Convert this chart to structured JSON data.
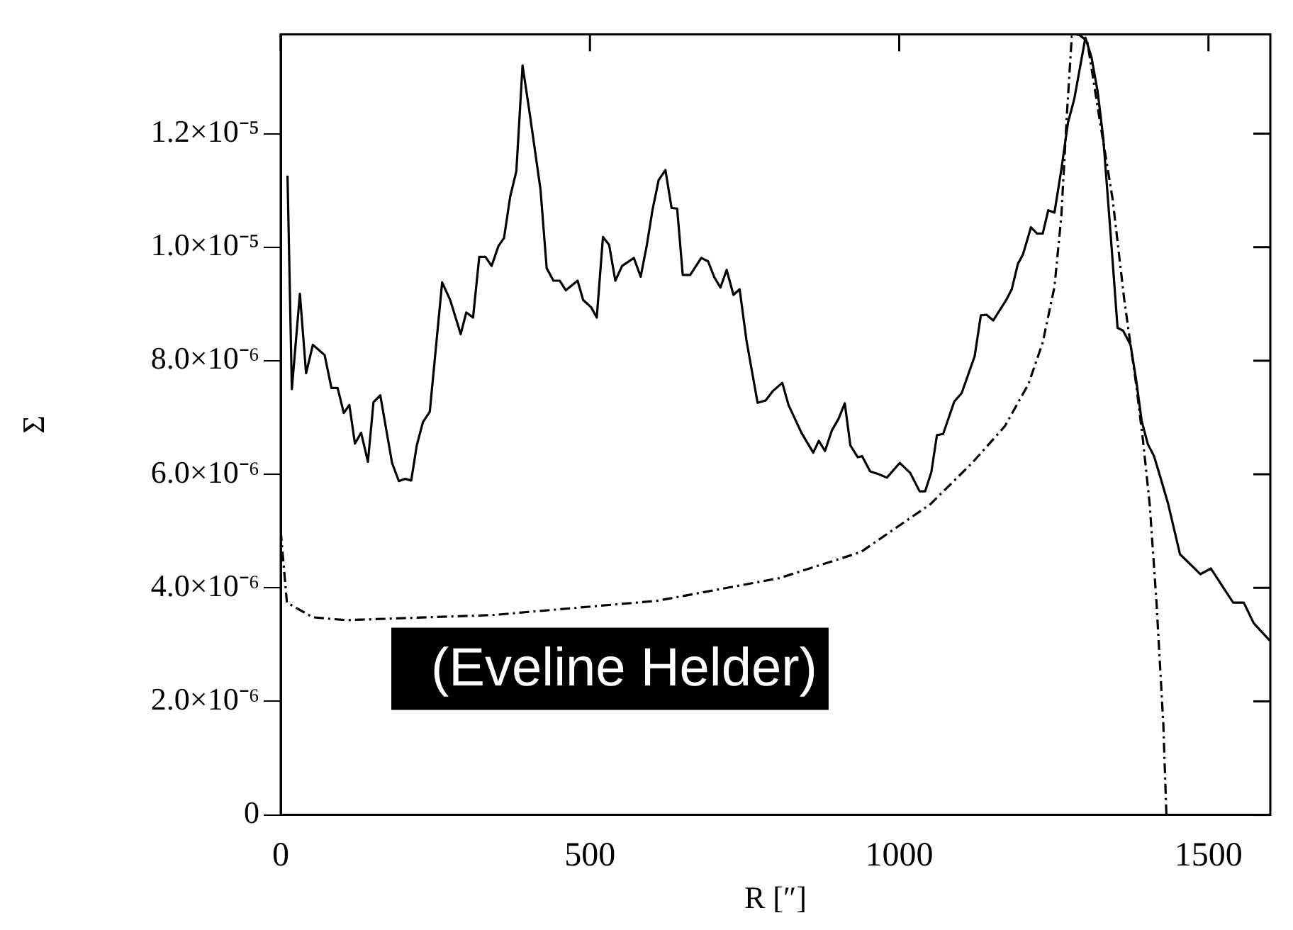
{
  "chart_data": {
    "type": "line",
    "xlabel": "R [″]",
    "ylabel": "Σ",
    "xlim": [
      0,
      1600
    ],
    "xticks": [
      0,
      500,
      1000,
      1500
    ],
    "ylim": [
      0,
      1.375e-05
    ],
    "yticks": [
      0,
      {
        "value": 2e-06,
        "label": "2.0×10⁻⁶"
      },
      {
        "value": 4e-06,
        "label": "4.0×10⁻⁶"
      },
      {
        "value": 6e-06,
        "label": "6.0×10⁻⁶"
      },
      {
        "value": 8e-06,
        "label": "8.0×10⁻⁶"
      },
      {
        "value": 1e-05,
        "label": "1.0×10⁻⁵"
      },
      {
        "value": 1.2e-05,
        "label": "1.2×10⁻⁵"
      }
    ],
    "grid": false,
    "legend": false,
    "marker": "none",
    "annotations": [
      "(Eveline Helder)"
    ],
    "series": [
      {
        "color": "#000000",
        "line_style": "solid",
        "x": [
          11,
          18,
          31,
          41,
          52,
          71,
          82,
          92,
          102,
          111,
          120,
          130,
          141,
          150,
          161,
          180,
          191,
          201,
          211,
          220,
          230,
          241,
          261,
          274,
          291,
          300,
          311,
          321,
          331,
          341,
          352,
          361,
          371,
          381,
          391,
          402,
          420,
          430,
          441,
          451,
          461,
          480,
          489,
          502,
          511,
          521,
          531,
          541,
          552,
          571,
          582,
          592,
          601,
          611,
          622,
          632,
          641,
          650,
          662,
          680,
          691,
          701,
          711,
          721,
          732,
          742,
          753,
          771,
          784,
          796,
          811,
          821,
          842,
          861,
          870,
          880,
          891,
          902,
          912,
          921,
          933,
          940,
          953,
          967,
          980,
          1001,
          1018,
          1033,
          1042,
          1052,
          1061,
          1071,
          1089,
          1101,
          1122,
          1132,
          1141,
          1152,
          1173,
          1182,
          1192,
          1200,
          1213,
          1223,
          1232,
          1241,
          1251,
          1262,
          1273,
          1283,
          1301,
          1311,
          1321,
          1330,
          1342,
          1353,
          1362,
          1374,
          1383,
          1392,
          1402,
          1412,
          1423,
          1435,
          1454,
          1474,
          1487,
          1504,
          1523,
          1540,
          1557,
          1573,
          1599
        ],
        "values": [
          1.126e-05,
          7.5e-06,
          9.18e-06,
          7.78e-06,
          8.28e-06,
          8.1e-06,
          7.52e-06,
          7.52e-06,
          7.08e-06,
          7.22e-06,
          6.54e-06,
          6.73e-06,
          6.22e-06,
          7.27e-06,
          7.39e-06,
          6.2e-06,
          5.88e-06,
          5.92e-06,
          5.89e-06,
          6.51e-06,
          6.92e-06,
          7.1e-06,
          9.38e-06,
          9.07e-06,
          8.47e-06,
          8.85e-06,
          8.76e-06,
          9.83e-06,
          9.83e-06,
          9.67e-06,
          1.002e-05,
          1.016e-05,
          1.089e-05,
          1.134e-05,
          1.32e-05,
          1.24e-05,
          1.102e-05,
          9.63e-06,
          9.41e-06,
          9.41e-06,
          9.24e-06,
          9.41e-06,
          9.07e-06,
          8.94e-06,
          8.76e-06,
          1.018e-05,
          1.004e-05,
          9.41e-06,
          9.67e-06,
          9.81e-06,
          9.48e-06,
          1.004e-05,
          1.065e-05,
          1.118e-05,
          1.136e-05,
          1.069e-05,
          1.068e-05,
          9.51e-06,
          9.51e-06,
          9.81e-06,
          9.75e-06,
          9.47e-06,
          9.29e-06,
          9.6e-06,
          9.16e-06,
          9.26e-06,
          8.36e-06,
          7.26e-06,
          7.3e-06,
          7.47e-06,
          7.61e-06,
          7.22e-06,
          6.73e-06,
          6.38e-06,
          6.59e-06,
          6.41e-06,
          6.77e-06,
          6.98e-06,
          7.25e-06,
          6.51e-06,
          6.3e-06,
          6.32e-06,
          6.05e-06,
          6e-06,
          5.94e-06,
          6.2e-06,
          6.02e-06,
          5.7e-06,
          5.7e-06,
          6.04e-06,
          6.69e-06,
          6.71e-06,
          7.28e-06,
          7.43e-06,
          8.08e-06,
          8.8e-06,
          8.81e-06,
          8.71e-06,
          9.07e-06,
          9.26e-06,
          9.71e-06,
          9.87e-06,
          1.035e-05,
          1.024e-05,
          1.024e-05,
          1.065e-05,
          1.061e-05,
          1.136e-05,
          1.22e-05,
          1.261e-05,
          1.369e-05,
          1.334e-05,
          1.273e-05,
          1.191e-05,
          1.02e-05,
          8.58e-06,
          8.53e-06,
          8.28e-06,
          7.67e-06,
          6.94e-06,
          6.53e-06,
          6.32e-06,
          5.92e-06,
          5.47e-06,
          4.59e-06,
          4.38e-06,
          4.24e-06,
          4.34e-06,
          4.02e-06,
          3.74e-06,
          3.74e-06,
          3.38e-06,
          3.07e-06
        ]
      },
      {
        "color": "#000000",
        "line_style": "dashed",
        "x": [
          0,
          10,
          52,
          106,
          343,
          608,
          806,
          938,
          1050,
          1118,
          1171,
          1209,
          1232,
          1251,
          1262,
          1271,
          1279,
          1290,
          1304,
          1323,
          1345,
          1364,
          1383,
          1394,
          1405,
          1416,
          1427,
          1432
        ],
        "values": [
          5e-06,
          3.74e-06,
          3.48e-06,
          3.43e-06,
          3.52e-06,
          3.77e-06,
          4.17e-06,
          4.63e-06,
          5.47e-06,
          6.2e-06,
          6.85e-06,
          7.59e-06,
          8.32e-06,
          9.3e-06,
          1.053e-05,
          1.232e-05,
          1.371e-05,
          1.375e-05,
          1.363e-05,
          1.232e-05,
          1.085e-05,
          9.06e-06,
          7.59e-06,
          6.61e-06,
          5.47e-06,
          3.74e-06,
          1.6e-06,
          0
        ]
      }
    ]
  }
}
